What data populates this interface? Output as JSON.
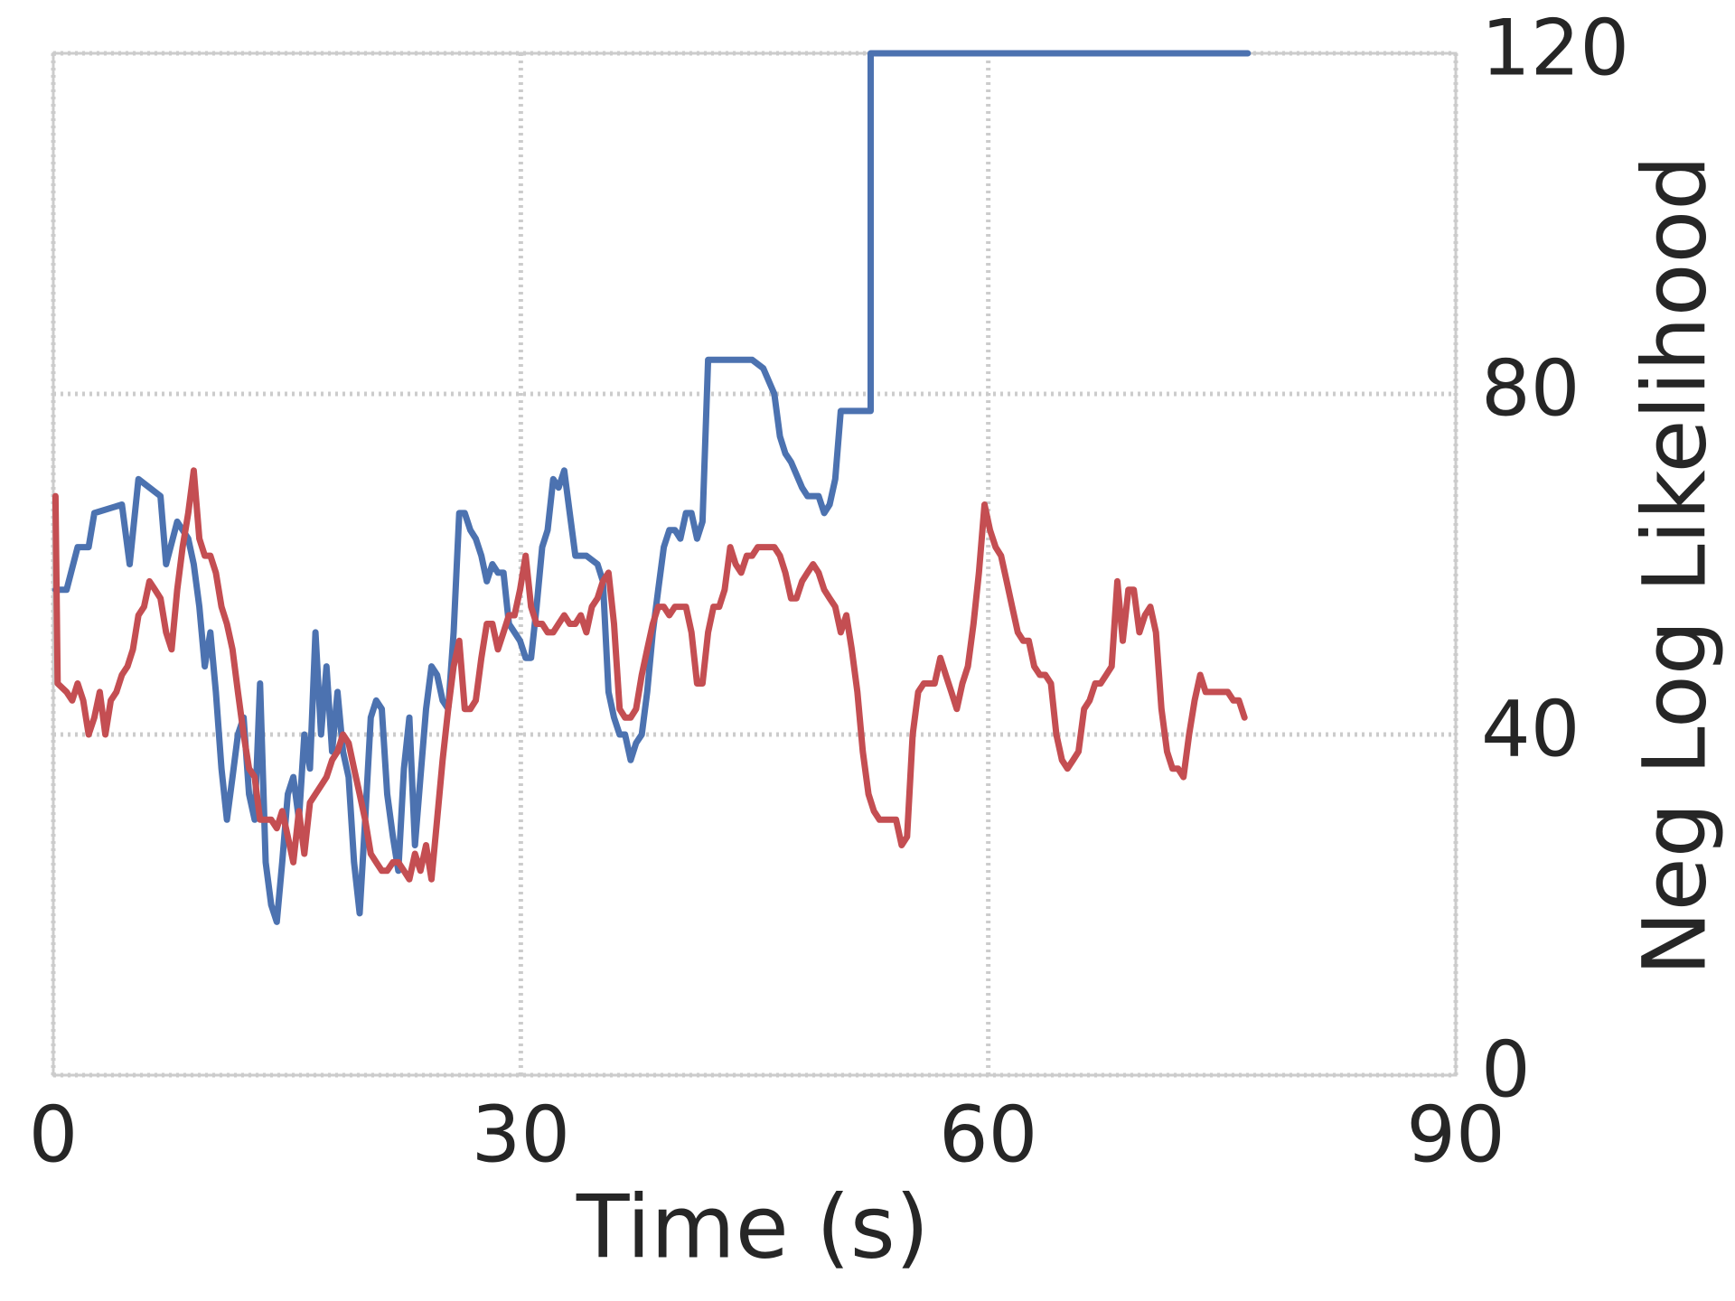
{
  "chart_data": {
    "type": "line",
    "xlabel": "Time (s)",
    "ylabel": "Neg Log Likelihood",
    "xlim": [
      0,
      90
    ],
    "xticks": [
      0,
      30,
      60,
      90
    ],
    "ylim": [
      0,
      120
    ],
    "yticks": [
      0,
      40,
      80,
      120
    ],
    "grid": true,
    "y_axis_side": "right",
    "series": [
      {
        "color": "#4c72b0",
        "x": [
          0.14,
          0.85,
          1.56,
          2.27,
          2.63,
          4.4,
          4.9,
          5.46,
          6.88,
          7.24,
          7.95,
          8.66,
          9.01,
          9.37,
          9.72,
          10.08,
          10.43,
          10.79,
          11.14,
          11.5,
          11.85,
          12.21,
          12.56,
          12.92,
          13.27,
          13.63,
          13.98,
          14.34,
          14.69,
          15.05,
          15.4,
          15.76,
          16.11,
          16.47,
          16.82,
          17.18,
          17.53,
          17.89,
          18.24,
          18.59,
          18.95,
          19.3,
          19.66,
          20.01,
          20.37,
          20.72,
          21.08,
          21.43,
          21.79,
          22.14,
          22.5,
          22.85,
          23.21,
          23.56,
          23.92,
          24.27,
          24.63,
          24.98,
          25.34,
          25.69,
          26.05,
          26.4,
          26.76,
          27.11,
          27.47,
          27.82,
          28.18,
          28.53,
          28.89,
          29.24,
          29.6,
          29.95,
          30.31,
          30.66,
          31.01,
          31.37,
          31.72,
          32.08,
          32.43,
          32.79,
          33.14,
          33.5,
          34.21,
          34.92,
          35.27,
          35.63,
          35.98,
          36.34,
          36.69,
          37.05,
          37.4,
          37.76,
          38.11,
          38.47,
          38.82,
          39.18,
          39.53,
          39.89,
          40.24,
          40.6,
          40.95,
          41.31,
          41.66,
          42.02,
          42.73,
          43.79,
          44.85,
          45.56,
          46.27,
          46.63,
          46.98,
          47.34,
          48.05,
          48.4,
          49.11,
          49.47,
          49.82,
          50.18,
          50.53,
          51.24,
          51.95,
          52.45,
          52.45,
          76.65
        ],
        "values": [
          57,
          57,
          62,
          62,
          66,
          67,
          60,
          70,
          68,
          60,
          65,
          63,
          60,
          55,
          48,
          52,
          45,
          36,
          30,
          35,
          40,
          42,
          33,
          30,
          46,
          25,
          20,
          18,
          25,
          33,
          35,
          30,
          40,
          36,
          52,
          40,
          48,
          38,
          45,
          38,
          35,
          25,
          19,
          30,
          42,
          44,
          43,
          33,
          28,
          24,
          36,
          42,
          27,
          35,
          43,
          48,
          47,
          44,
          43,
          52,
          66,
          66,
          64,
          63,
          61,
          58,
          60,
          59,
          59,
          53,
          52,
          51,
          49,
          49,
          55,
          62,
          64,
          70,
          69,
          71,
          66,
          61,
          61,
          60,
          58,
          45,
          42,
          40,
          40,
          37,
          39,
          40,
          45,
          52,
          57,
          62,
          64,
          64,
          63,
          66,
          66,
          63,
          65,
          84,
          84,
          84,
          84,
          83,
          80,
          75,
          73,
          72,
          69,
          68,
          68,
          66,
          67,
          70,
          78,
          78,
          78,
          78,
          120,
          120
        ]
      },
      {
        "color": "#c44e52",
        "x": [
          0.14,
          0.28,
          0.85,
          1.21,
          1.56,
          1.92,
          2.27,
          2.63,
          2.98,
          3.34,
          3.69,
          4.05,
          4.4,
          4.76,
          5.11,
          5.46,
          5.82,
          6.17,
          6.53,
          6.88,
          7.24,
          7.59,
          7.95,
          8.3,
          8.66,
          9.01,
          9.37,
          9.72,
          10.08,
          10.43,
          10.79,
          11.14,
          11.5,
          11.85,
          12.21,
          12.56,
          12.92,
          13.27,
          13.63,
          13.98,
          14.34,
          14.69,
          15.05,
          15.4,
          15.76,
          16.11,
          16.47,
          16.82,
          17.18,
          17.53,
          17.89,
          18.24,
          18.59,
          18.95,
          19.3,
          19.66,
          20.01,
          20.37,
          20.72,
          21.08,
          21.43,
          21.79,
          22.14,
          22.5,
          22.85,
          23.21,
          23.56,
          23.92,
          24.27,
          24.63,
          24.98,
          25.34,
          25.69,
          26.05,
          26.4,
          26.76,
          27.11,
          27.47,
          27.82,
          28.18,
          28.53,
          28.89,
          29.24,
          29.6,
          29.95,
          30.31,
          30.66,
          31.01,
          31.37,
          31.72,
          32.08,
          32.43,
          32.79,
          33.14,
          33.5,
          33.85,
          34.21,
          34.56,
          34.92,
          35.27,
          35.63,
          35.98,
          36.34,
          36.69,
          37.05,
          37.4,
          37.76,
          38.11,
          38.47,
          38.82,
          39.18,
          39.53,
          39.89,
          40.24,
          40.6,
          40.95,
          41.31,
          41.66,
          42.02,
          42.37,
          42.73,
          43.08,
          43.44,
          43.79,
          44.14,
          44.5,
          44.85,
          45.21,
          45.56,
          45.92,
          46.27,
          46.63,
          46.98,
          47.34,
          47.69,
          48.05,
          48.4,
          48.76,
          49.11,
          49.47,
          49.82,
          50.18,
          50.53,
          50.89,
          51.24,
          51.6,
          51.95,
          52.31,
          52.66,
          53.02,
          53.37,
          54.08,
          54.44,
          54.79,
          55.15,
          55.5,
          55.86,
          56.21,
          56.56,
          56.92,
          57.27,
          57.63,
          57.98,
          58.34,
          58.69,
          59.05,
          59.4,
          59.76,
          60.11,
          60.47,
          60.82,
          61.18,
          61.53,
          61.89,
          62.24,
          62.6,
          62.95,
          63.31,
          63.66,
          64.02,
          64.37,
          64.73,
          65.08,
          65.44,
          65.79,
          66.15,
          66.5,
          66.86,
          67.21,
          67.57,
          67.92,
          68.28,
          68.63,
          68.99,
          69.34,
          69.7,
          70.05,
          70.4,
          70.76,
          71.11,
          71.47,
          71.82,
          72.18,
          72.53,
          72.89,
          73.24,
          73.6,
          73.95,
          74.31,
          74.66,
          75.02,
          75.37,
          75.73,
          76.08,
          76.44
        ],
        "values": [
          68,
          46,
          45,
          44,
          46,
          44,
          40,
          42,
          45,
          40,
          44,
          45,
          47,
          48,
          50,
          54,
          55,
          58,
          57,
          56,
          52,
          50,
          57,
          62,
          66,
          71,
          63,
          61,
          61,
          59,
          55,
          53,
          50,
          45,
          40,
          36,
          35,
          30,
          30,
          30,
          29,
          31,
          28,
          25,
          31,
          26,
          32,
          33,
          34,
          35,
          37,
          38,
          40,
          39,
          36,
          33,
          30,
          26,
          25,
          24,
          24,
          25,
          25,
          24,
          23,
          26,
          24,
          27,
          23,
          30,
          37,
          43,
          48,
          51,
          43,
          43,
          44,
          49,
          53,
          53,
          50,
          52,
          54,
          54,
          57,
          61,
          55,
          53,
          53,
          52,
          52,
          53,
          54,
          53,
          53,
          54,
          52,
          55,
          56,
          58,
          59,
          53,
          43,
          42,
          42,
          43,
          47,
          50,
          53,
          55,
          55,
          54,
          55,
          55,
          55,
          52,
          46,
          46,
          52,
          55,
          55,
          57,
          62,
          60,
          59,
          61,
          61,
          62,
          62,
          62,
          62,
          61,
          59,
          56,
          56,
          58,
          59,
          60,
          59,
          57,
          56,
          55,
          52,
          54,
          50,
          45,
          38,
          33,
          31,
          30,
          30,
          30,
          27,
          28,
          40,
          45,
          46,
          46,
          46,
          49,
          47,
          45,
          43,
          46,
          48,
          53,
          59,
          67,
          64,
          62,
          61,
          58,
          55,
          52,
          51,
          51,
          48,
          47,
          47,
          46,
          40,
          37,
          36,
          37,
          38,
          43,
          44,
          46,
          46,
          47,
          48,
          58,
          51,
          57,
          57,
          52,
          54,
          55,
          52,
          43,
          38,
          36,
          36,
          35,
          40,
          44,
          47,
          45,
          45,
          45,
          45,
          45,
          44,
          44,
          42
        ]
      }
    ]
  }
}
